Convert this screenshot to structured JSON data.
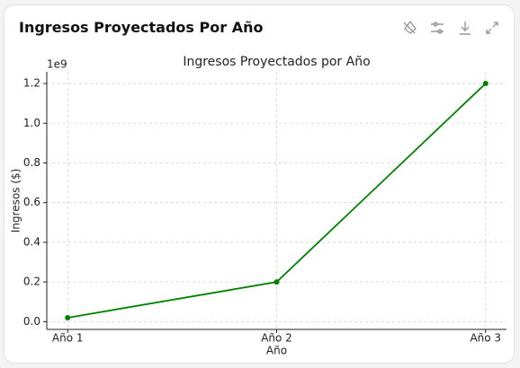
{
  "card_title": "Ingresos Proyectados Por Año",
  "chart_data": {
    "type": "line",
    "title": "Ingresos Proyectados por Año",
    "x_label": "Año",
    "y_label": "Ingresos ($)",
    "y_offset_label": "1e9",
    "categories": [
      "Año 1",
      "Año 2",
      "Año 3"
    ],
    "series": [
      {
        "name": "Ingresos",
        "color": "#008000",
        "values": [
          0.02,
          0.2,
          1.2
        ]
      }
    ],
    "ylim": [
      -0.039,
      1.259
    ],
    "yticks": [
      {
        "value": 0,
        "label": "0.0"
      },
      0.2,
      0.4,
      0.6,
      0.8,
      {
        "value": 1,
        "label": "1.0"
      },
      1.2
    ],
    "grid": true
  }
}
